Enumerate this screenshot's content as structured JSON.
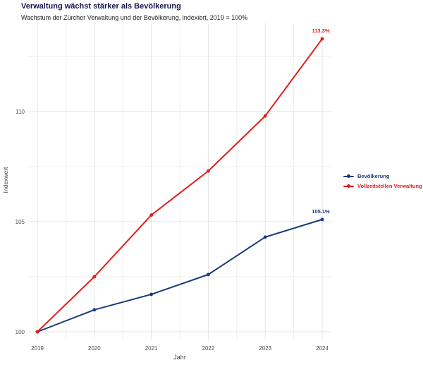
{
  "chart_data": {
    "type": "line",
    "title": "Verwaltung wächst stärker als Bevölkerung",
    "subtitle": "Wachstum der Zürcher Verwaltung und der Bevölkerung, indexiert, 2019 = 100%",
    "xlabel": "Jahr",
    "ylabel": "Indexwert",
    "x": [
      2019,
      2020,
      2021,
      2022,
      2023,
      2024
    ],
    "series": [
      {
        "name": "Bevölkerung",
        "color": "#1a3a7a",
        "values": [
          100,
          101.0,
          101.7,
          102.6,
          104.3,
          105.1
        ],
        "end_label": "105.1%"
      },
      {
        "name": "Vollzeitstellen Verwaltung",
        "color": "#e21c1c",
        "values": [
          100,
          102.5,
          105.3,
          107.3,
          109.8,
          113.3
        ],
        "end_label": "113.3%"
      }
    ],
    "y_ticks": [
      100,
      105,
      110
    ],
    "y_minor": [
      102.5,
      107.5,
      112.5
    ],
    "ylim": [
      99.6,
      114.0
    ],
    "grid": true,
    "legend_position": "right",
    "colors": {
      "grid_major": "#e3e3e3",
      "grid_minor": "#efefef",
      "axis_text": "#4d4d4d",
      "background": "#ffffff"
    }
  }
}
